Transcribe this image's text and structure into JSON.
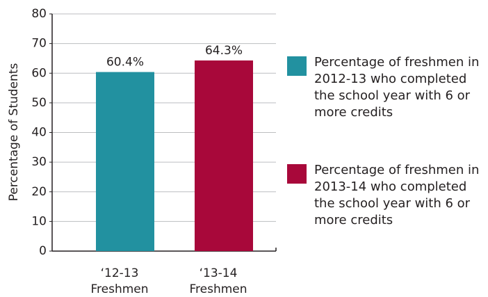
{
  "chart_data": {
    "type": "bar",
    "y_label": "Percentage of Students",
    "categories": [
      "‘12-13 Freshmen",
      "‘13-14 Freshmen"
    ],
    "values": [
      60.4,
      64.3
    ],
    "value_labels": [
      "60.4%",
      "64.3%"
    ],
    "colors": [
      "#2291a0",
      "#a8083a"
    ],
    "legend": [
      "Percentage of freshmen in 2012-13 who completed the school year with 6 or more credits",
      "Percentage of freshmen in 2013-14 who completed the school year with 6 or more credits"
    ],
    "ylim": [
      0,
      80
    ],
    "yticks": [
      0,
      10,
      20,
      30,
      40,
      50,
      60,
      70,
      80
    ],
    "grid": true
  }
}
